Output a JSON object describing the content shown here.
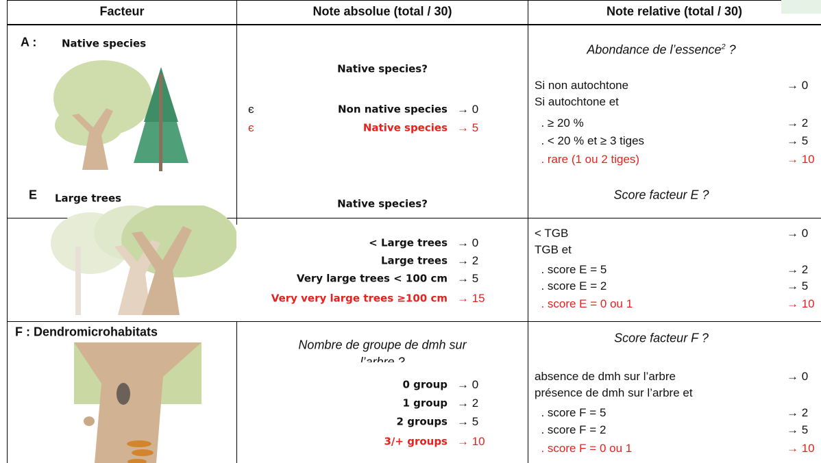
{
  "header": {
    "columns": [
      "Facteur",
      "Note absolue (total / 30)",
      "Note relative (total / 30)"
    ]
  },
  "rows": [
    {
      "factor": {
        "letter": "A :",
        "name": "Native species"
      },
      "absolute": {
        "question": [
          "Native species?"
        ],
        "options": [
          {
            "mark": "є",
            "label": "Non native species",
            "score": "→ 0",
            "selected": false
          },
          {
            "mark": "є",
            "label": "Native species",
            "score": "→ 5",
            "selected": true
          }
        ]
      },
      "relative": {
        "question": {
          "text": "Abondance de l’essence",
          "sup": "2",
          "end": " ?"
        },
        "lines": [
          {
            "label": "Si non autochtone",
            "score": "→ 0",
            "selected": false
          },
          {
            "label": "Si autochtone et",
            "selected": false
          },
          {
            "label": "  . ≥ 20 %",
            "score": "→ 2",
            "selected": false
          },
          {
            "label": "  . < 20 % et ≥ 3 tiges",
            "score": "→ 5",
            "selected": false
          },
          {
            "label": "  . rare (1 ou 2 tiges)",
            "score": "→ 10",
            "selected": true
          }
        ]
      }
    },
    {
      "factor": {
        "letter": "E",
        "name": "Large trees"
      },
      "absolute": {
        "question": [
          "Native species?"
        ],
        "options": [
          {
            "label": "< Large trees",
            "score": "→ 0",
            "selected": false
          },
          {
            "label": "Large trees",
            "score": "→ 2",
            "selected": false
          },
          {
            "label": "Very large trees < 100 cm",
            "score": "→ 5",
            "selected": false
          },
          {
            "label": "Very very large trees ≥100 cm",
            "score": "→ 15",
            "selected": true
          }
        ]
      },
      "relative": {
        "question": {
          "text": "Score facteur E ?"
        },
        "lines": [
          {
            "label": "< TGB",
            "score": "→ 0",
            "selected": false
          },
          {
            "label": "TGB et",
            "selected": false
          },
          {
            "label": "  . score E = 5",
            "score": "→ 2",
            "selected": false
          },
          {
            "label": "  . score E = 2",
            "score": "→ 5",
            "selected": false
          },
          {
            "label": "  . score E = 0 ou 1",
            "score": "→ 10",
            "selected": true
          }
        ]
      }
    },
    {
      "factor": {
        "name": "F : Dendromicrohabitats"
      },
      "absolute": {
        "question": [
          "Nombre de groupe de dmh sur",
          "l’arbre ?"
        ],
        "options": [
          {
            "label": "0 group",
            "score": "→ 0",
            "selected": false
          },
          {
            "label": "1 group",
            "score": "→ 2",
            "selected": false
          },
          {
            "label": "2 groups",
            "score": "→ 5",
            "selected": false
          },
          {
            "label": "3/+ groups",
            "score": "→ 10",
            "selected": true
          }
        ]
      },
      "relative": {
        "question": {
          "text": "Score facteur F ?"
        },
        "lines": [
          {
            "label": "absence de dmh sur l’arbre",
            "score": "→ 0",
            "selected": false
          },
          {
            "label": "présence de dmh sur l’arbre et",
            "selected": false
          },
          {
            "label": "  . score F = 5",
            "score": "→ 2",
            "selected": false
          },
          {
            "label": "  . score F = 2",
            "score": "→ 5",
            "selected": false
          },
          {
            "label": "  . score F = 0 ou 1",
            "score": "→ 10",
            "selected": true
          }
        ]
      }
    }
  ]
}
